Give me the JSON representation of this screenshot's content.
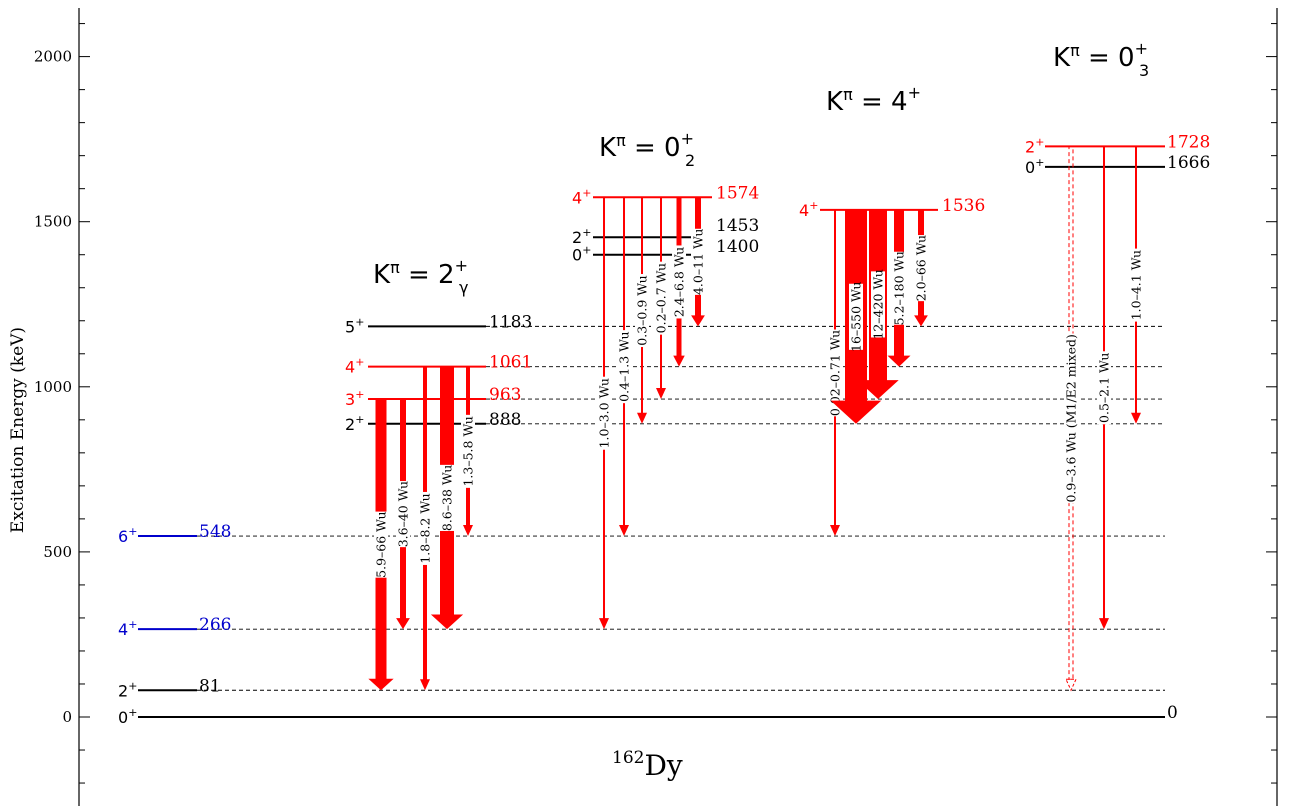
{
  "colors": {
    "black": "#000000",
    "red": "#ff0000",
    "blue": "#0000cc"
  },
  "axis": {
    "ylabel": "Excitation Energy (keV)",
    "ticks": [
      "0",
      "500",
      "1000",
      "1500",
      "2000"
    ]
  },
  "nucleus": {
    "mass": "162",
    "symbol": "Dy"
  },
  "bands": {
    "gamma": {
      "prefix": "K",
      "pi": "π",
      "eq": " = 2",
      "sup": "+",
      "sub": "γ"
    },
    "zero2": {
      "prefix": "K",
      "pi": "π",
      "eq": " = 0",
      "sup": "+",
      "sub": "2"
    },
    "four": {
      "prefix": "K",
      "pi": "π",
      "eq": " = 4",
      "sup": "+"
    },
    "zero3": {
      "prefix": "K",
      "pi": "π",
      "eq": " = 0",
      "sup": "+",
      "sub": "3"
    }
  },
  "levels": [
    {
      "id": "gs0",
      "energy": "0",
      "spin": "0",
      "parity": "+"
    },
    {
      "id": "gs81",
      "energy": "81",
      "spin": "2",
      "parity": "+"
    },
    {
      "id": "gs266",
      "energy": "266",
      "spin": "4",
      "parity": "+"
    },
    {
      "id": "gs548",
      "energy": "548",
      "spin": "6",
      "parity": "+"
    },
    {
      "id": "g888",
      "energy": "888",
      "spin": "2",
      "parity": "+"
    },
    {
      "id": "g963",
      "energy": "963",
      "spin": "3",
      "parity": "+"
    },
    {
      "id": "g1061",
      "energy": "1061",
      "spin": "4",
      "parity": "+"
    },
    {
      "id": "g1183",
      "energy": "1183",
      "spin": "5",
      "parity": "+"
    },
    {
      "id": "z1400",
      "energy": "1400",
      "spin": "0",
      "parity": "+"
    },
    {
      "id": "z1453",
      "energy": "1453",
      "spin": "2",
      "parity": "+"
    },
    {
      "id": "z1574",
      "energy": "1574",
      "spin": "4",
      "parity": "+"
    },
    {
      "id": "k1536",
      "energy": "1536",
      "spin": "4",
      "parity": "+"
    },
    {
      "id": "t1666",
      "energy": "1666",
      "spin": "0",
      "parity": "+"
    },
    {
      "id": "t1728",
      "energy": "1728",
      "spin": "2",
      "parity": "+"
    }
  ],
  "transitions": [
    {
      "from": "963",
      "to": "81",
      "strength": "5.9–66 Wu"
    },
    {
      "from": "963",
      "to": "266",
      "strength": "3.6–40 Wu"
    },
    {
      "from": "1061",
      "to": "81",
      "strength": "1.8–8.2 Wu"
    },
    {
      "from": "1061",
      "to": "266",
      "strength": "8.6–38 Wu"
    },
    {
      "from": "1061",
      "to": "548",
      "strength": "1.3–5.8 Wu"
    },
    {
      "from": "1574",
      "to": "266",
      "strength": "1.0–3.0 Wu"
    },
    {
      "from": "1574",
      "to": "548",
      "strength": "0.4–1.3 Wu"
    },
    {
      "from": "1574",
      "to": "888",
      "strength": "0.3–0.9 Wu"
    },
    {
      "from": "1574",
      "to": "963",
      "strength": "0.2–0.7 Wu"
    },
    {
      "from": "1574",
      "to": "1061",
      "strength": "2.4–6.8 Wu"
    },
    {
      "from": "1574",
      "to": "1183",
      "strength": "4.0–11 Wu"
    },
    {
      "from": "1536",
      "to": "548",
      "strength": "0.02–0.71 Wu"
    },
    {
      "from": "1536",
      "to": "888",
      "strength": "16–550 Wu"
    },
    {
      "from": "1536",
      "to": "963",
      "strength": "12–420 Wu"
    },
    {
      "from": "1536",
      "to": "1061",
      "strength": "5.2–180 Wu"
    },
    {
      "from": "1536",
      "to": "1183",
      "strength": "2.0–66 Wu"
    },
    {
      "from": "1728",
      "to": "81",
      "strength": "0.9–3.6 Wu (M1/E2 mixed)"
    },
    {
      "from": "1728",
      "to": "266",
      "strength": "0.5–2.1 Wu"
    },
    {
      "from": "1728",
      "to": "888",
      "strength": "1.0–4.1 Wu"
    }
  ]
}
